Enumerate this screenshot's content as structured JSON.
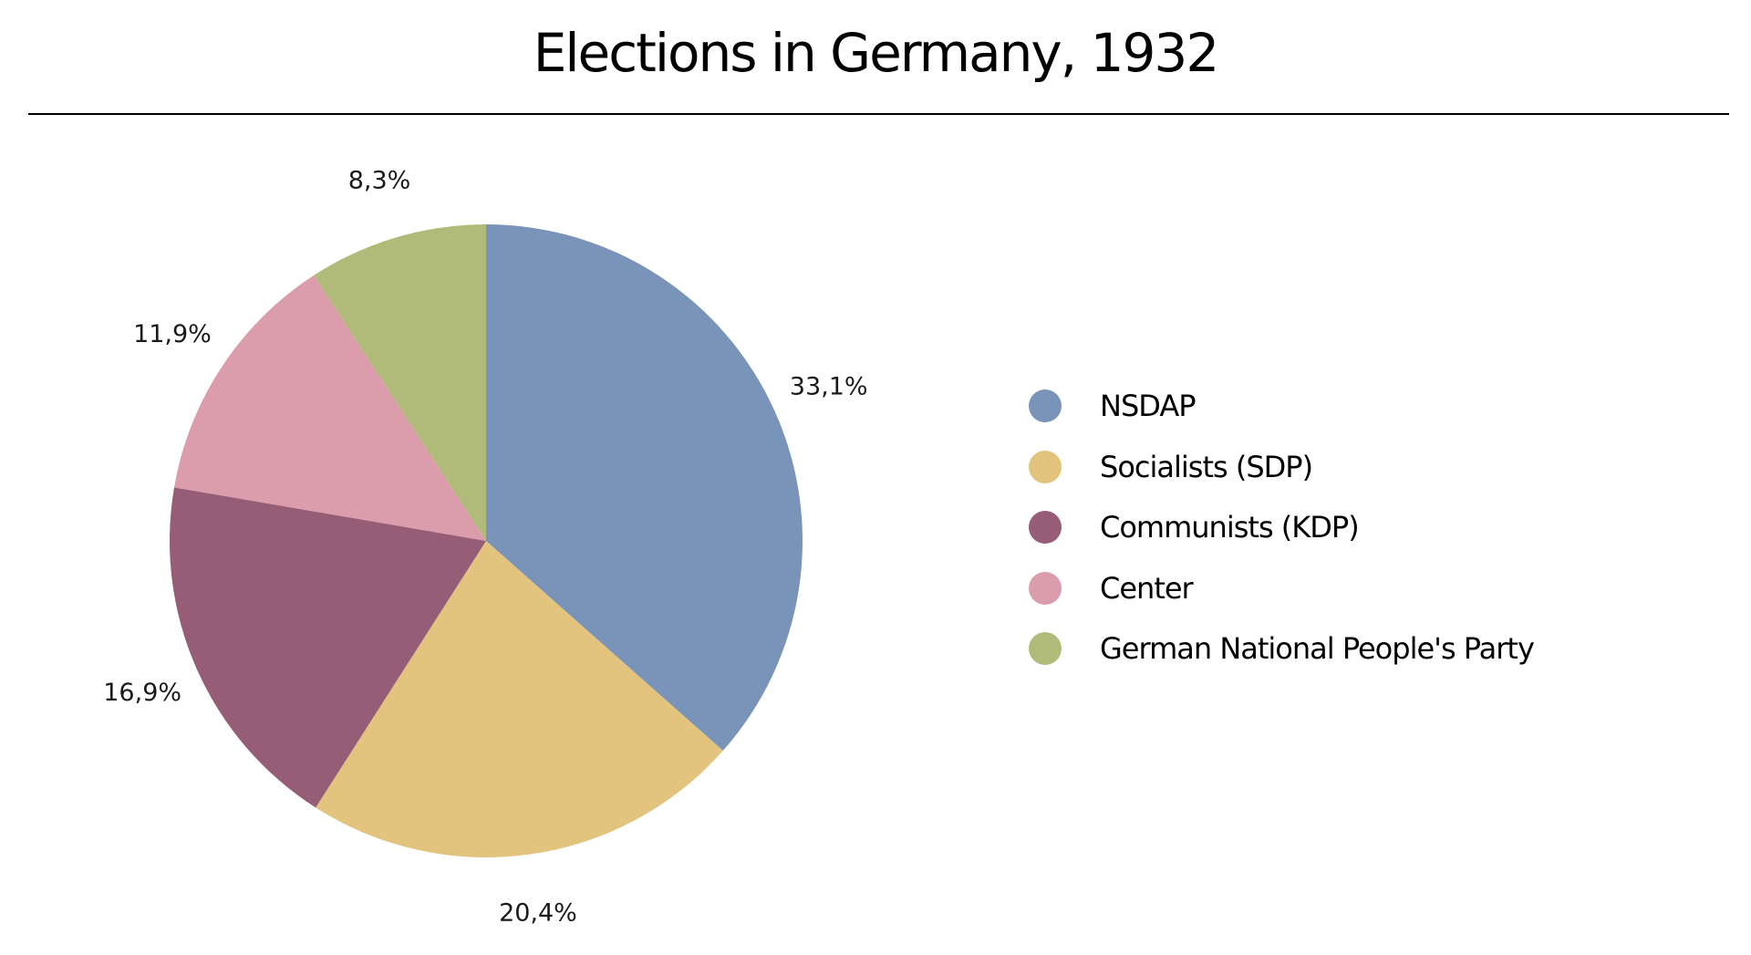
{
  "chart_data": {
    "type": "pie",
    "title": "Elections in Germany, 1932",
    "categories": [
      "NSDAP",
      "Socialists (SDP)",
      "Communists (KDP)",
      "Center",
      "German National People's Party"
    ],
    "values": [
      33.1,
      20.4,
      16.9,
      11.9,
      8.3
    ],
    "value_labels": [
      "33,1%",
      "20,4%",
      "16,9%",
      "11,9%",
      "8,3%"
    ],
    "colors": [
      "#7a93b8",
      "#e2c47e",
      "#975d77",
      "#db9cab",
      "#b1bb79"
    ],
    "legend_position": "right",
    "start_angle": "top",
    "direction": "clockwise"
  }
}
